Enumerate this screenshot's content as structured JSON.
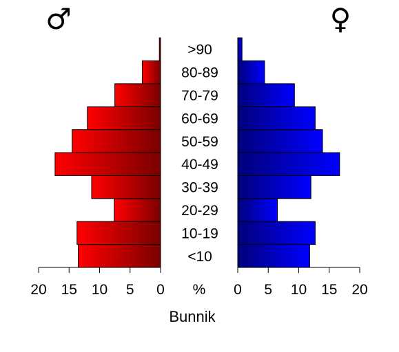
{
  "chart_data": {
    "type": "bar",
    "orientation": "horizontal",
    "subtype": "population-pyramid",
    "categories": [
      "<10",
      "10-19",
      "20-29",
      "30-39",
      "40-49",
      "50-59",
      "60-69",
      "70-79",
      "80-89",
      ">90"
    ],
    "series": [
      {
        "symbol": "♂",
        "side": "left",
        "color_light": "#ff0000",
        "color_dark": "#7a0000",
        "values": [
          13.5,
          13.7,
          7.6,
          11.3,
          17.3,
          14.5,
          12.0,
          7.5,
          3.0,
          0.2
        ]
      },
      {
        "symbol": "♀",
        "side": "right",
        "color_light": "#0000ff",
        "color_dark": "#00007a",
        "values": [
          11.8,
          12.7,
          6.5,
          12.0,
          16.7,
          13.9,
          12.7,
          9.3,
          4.4,
          0.7
        ]
      }
    ],
    "xlim": [
      0,
      20
    ],
    "ticks": [
      "20",
      "15",
      "10",
      "5",
      "0",
      "%",
      "0",
      "5",
      "10",
      "15",
      "20"
    ],
    "tick_values": [
      0,
      5,
      10,
      15,
      20
    ],
    "xlabel": "Bunnik",
    "grid": false,
    "legend": "none"
  }
}
